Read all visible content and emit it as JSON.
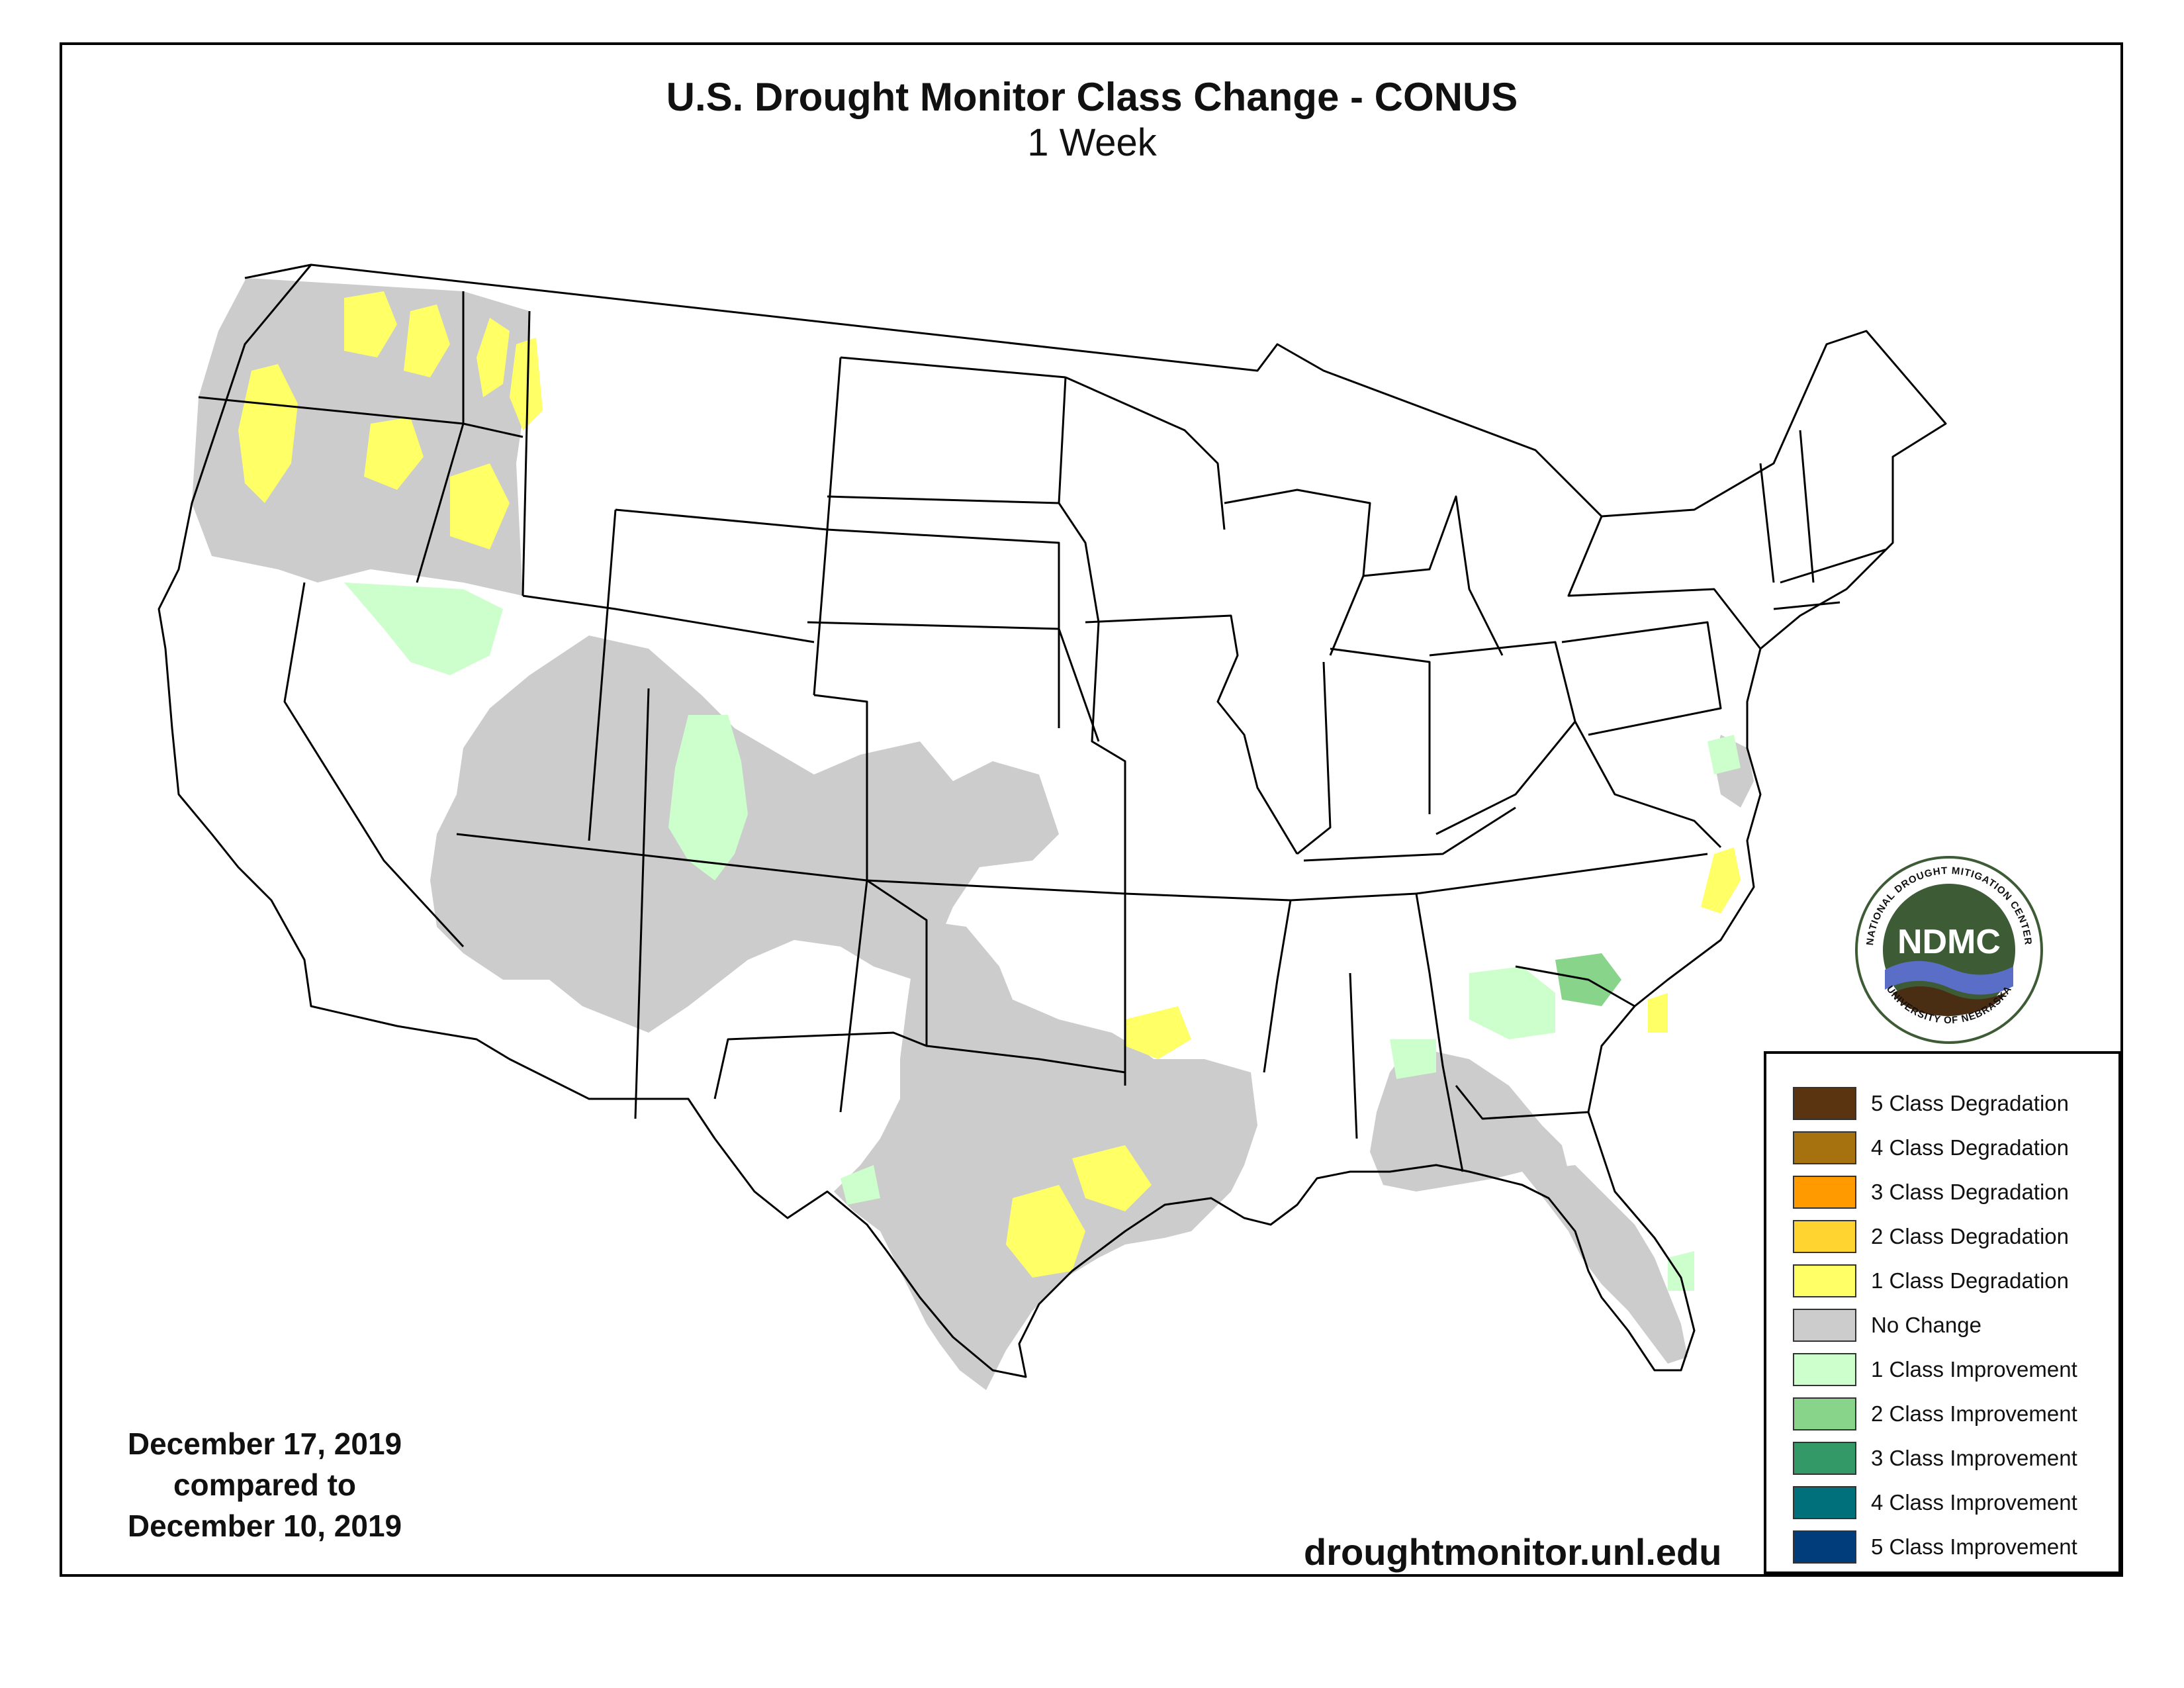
{
  "title": "U.S. Drought Monitor Class Change - CONUS",
  "subtitle": "1 Week",
  "dates": {
    "line1": "December 17, 2019",
    "line2": "compared to",
    "line3": "December 10, 2019"
  },
  "url": "droughtmonitor.unl.edu",
  "logo": {
    "abbr": "NDMC",
    "ring_top": "NATIONAL DROUGHT MITIGATION CENTER",
    "ring_bottom": "UNIVERSITY OF NEBRASKA"
  },
  "legend": [
    {
      "label": "5 Class Degradation",
      "color": "#5a3410"
    },
    {
      "label": "4 Class Degradation",
      "color": "#a6720f"
    },
    {
      "label": "3 Class Degradation",
      "color": "#ff9a00"
    },
    {
      "label": "2 Class Degradation",
      "color": "#ffd330"
    },
    {
      "label": "1 Class Degradation",
      "color": "#ffff66"
    },
    {
      "label": "No Change",
      "color": "#cccccc"
    },
    {
      "label": "1 Class Improvement",
      "color": "#ccffcc"
    },
    {
      "label": "2 Class Improvement",
      "color": "#88d48a"
    },
    {
      "label": "3 Class Improvement",
      "color": "#339966"
    },
    {
      "label": "4 Class Improvement",
      "color": "#00707a"
    },
    {
      "label": "5 Class Improvement",
      "color": "#003d7a"
    }
  ],
  "colors": {
    "no_change": "#cccccc",
    "degradation_1": "#ffff66",
    "improvement_1": "#ccffcc",
    "improvement_2": "#88d48a",
    "outline": "#000000",
    "logo_green": "#3d5c36",
    "logo_blue": "#5a6ec8",
    "logo_brown": "#4a2e14"
  }
}
